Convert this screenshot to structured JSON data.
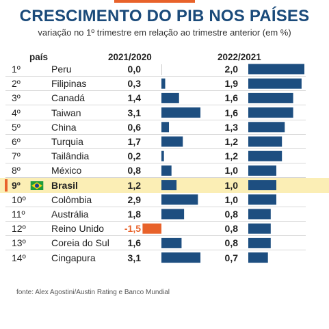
{
  "title": "CRESCIMENTO DO PIB NOS PAÍSES",
  "subtitle": "variação no 1º trimestre em relação ao trimestre anterior (em %)",
  "headers": {
    "country": "país",
    "col1": "2021/2020",
    "col2": "2022/2021"
  },
  "highlight_rank": "9º",
  "colors": {
    "title": "#1a4a7a",
    "bar": "#1d4e80",
    "negative": "#e8622a",
    "highlight": "#fbeeb5"
  },
  "rows": [
    {
      "rank": "1º",
      "country": "Peru",
      "v1_label": "0,0",
      "v2_label": "2,0"
    },
    {
      "rank": "2º",
      "country": "Filipinas",
      "v1_label": "0,3",
      "v2_label": "1,9"
    },
    {
      "rank": "3º",
      "country": "Canadá",
      "v1_label": "1,4",
      "v2_label": "1,6"
    },
    {
      "rank": "4º",
      "country": "Taiwan",
      "v1_label": "3,1",
      "v2_label": "1,6"
    },
    {
      "rank": "5º",
      "country": "China",
      "v1_label": "0,6",
      "v2_label": "1,3"
    },
    {
      "rank": "6º",
      "country": "Turquia",
      "v1_label": "1,7",
      "v2_label": "1,2"
    },
    {
      "rank": "7º",
      "country": "Tailândia",
      "v1_label": "0,2",
      "v2_label": "1,2"
    },
    {
      "rank": "8º",
      "country": "México",
      "v1_label": "0,8",
      "v2_label": "1,0"
    },
    {
      "rank": "9º",
      "country": "Brasil",
      "v1_label": "1,2",
      "v2_label": "1,0"
    },
    {
      "rank": "10º",
      "country": "Colômbia",
      "v1_label": "2,9",
      "v2_label": "1,0"
    },
    {
      "rank": "11º",
      "country": "Austrália",
      "v1_label": "1,8",
      "v2_label": "0,8"
    },
    {
      "rank": "12º",
      "country": "Reino Unido",
      "v1_label": "-1,5",
      "v2_label": "0,8"
    },
    {
      "rank": "13º",
      "country": "Coreia do Sul",
      "v1_label": "1,6",
      "v2_label": "0,8"
    },
    {
      "rank": "14º",
      "country": "Cingapura",
      "v1_label": "3,1",
      "v2_label": "0,7"
    }
  ],
  "chart_data": {
    "type": "bar",
    "orientation": "horizontal",
    "categories": [
      "Peru",
      "Filipinas",
      "Canadá",
      "Taiwan",
      "China",
      "Turquia",
      "Tailândia",
      "México",
      "Brasil",
      "Colômbia",
      "Austrália",
      "Reino Unido",
      "Coreia do Sul",
      "Cingapura"
    ],
    "series": [
      {
        "name": "2021/2020",
        "values": [
          0.0,
          0.3,
          1.4,
          3.1,
          0.6,
          1.7,
          0.2,
          0.8,
          1.2,
          2.9,
          1.8,
          -1.5,
          1.6,
          3.1
        ]
      },
      {
        "name": "2022/2021",
        "values": [
          2.0,
          1.9,
          1.6,
          1.6,
          1.3,
          1.2,
          1.2,
          1.0,
          1.0,
          1.0,
          0.8,
          0.8,
          0.8,
          0.7
        ]
      }
    ],
    "title": "CRESCIMENTO DO PIB NOS PAÍSES",
    "subtitle": "variação no 1º trimestre em relação ao trimestre anterior (em %)",
    "grid": false,
    "legend": "none"
  },
  "source": "fonte: Alex Agostini/Austin Rating e Banco Mundial"
}
